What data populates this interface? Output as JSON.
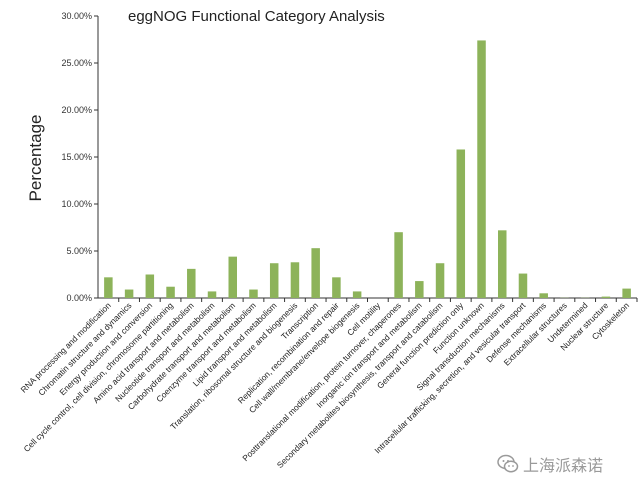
{
  "chart_data": {
    "type": "bar",
    "title": "eggNOG Functional Category Analysis",
    "ylabel": "Percentage",
    "xlabel": "",
    "ylim": [
      0,
      30
    ],
    "yticks": [
      "0.00%",
      "5.00%",
      "10.00%",
      "15.00%",
      "20.00%",
      "25.00%",
      "30.00%"
    ],
    "bar_color": "#8db35a",
    "grid": false,
    "categories": [
      "RNA processing and modification",
      "Chromatin structure and dynamics",
      "Energy production and conversion",
      "Cell cycle control, cell division, chromosome partitioning",
      "Amino acid transport and metabolism",
      "Nucleotide transport and metabolism",
      "Carbohydrate transport and metabolism",
      "Coenzyme transport and metabolism",
      "Lipid transport and metabolism",
      "Translation, ribosomal structure and biogenesis",
      "Transcription",
      "Replication, recombination and repair",
      "Cell wall/membrane/envelope biogenesis",
      "Cell motility",
      "Posttranslational modification, protein turnover, chaperones",
      "Inorganic ion transport and metabolism",
      "Secondary metabolites biosynthesis, transport and catabolism",
      "General function prediction only",
      "Function unknown",
      "Signal transduction mechanisms",
      "Intracellular trafficking, secretion, and vesicular transport",
      "Defense mechanisms",
      "Extracellular structures",
      "Undetermined",
      "Nuclear structure",
      "Cytoskeleton"
    ],
    "values": [
      2.2,
      0.9,
      2.5,
      1.2,
      3.1,
      0.7,
      4.4,
      0.9,
      3.7,
      3.8,
      5.3,
      2.2,
      0.7,
      0.0,
      7.0,
      1.8,
      3.7,
      15.8,
      27.4,
      7.2,
      2.6,
      0.5,
      0.02,
      0.02,
      0.15,
      1.0
    ]
  },
  "watermark": {
    "text": "上海派森诺",
    "icon": "wechat-icon"
  }
}
